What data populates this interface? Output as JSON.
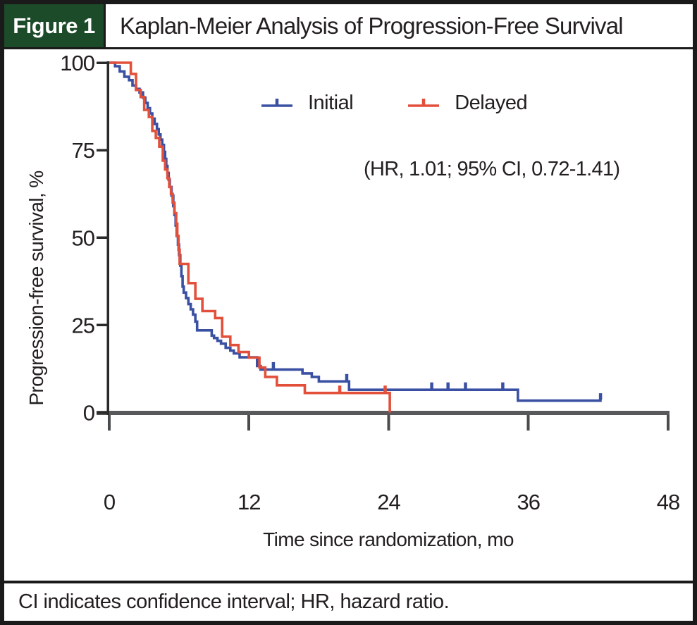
{
  "figure": {
    "label": "Figure 1",
    "title": "Kaplan-Meier Analysis of Progression-Free Survival",
    "footnote": "CI indicates confidence interval; HR, hazard ratio."
  },
  "colors": {
    "header_green": "#1c4b29",
    "initial_blue": "#3a50a3",
    "delayed_red": "#e2503b",
    "x_axis_gray": "#58595b",
    "x_tick_gray": "#4a4b4d",
    "y_axis_black": "#2a2a2a",
    "text_black": "#231f20"
  },
  "chart_data": {
    "type": "line",
    "subtype": "kaplan-meier-step",
    "title": "",
    "xlabel": "Time since randomization, mo",
    "ylabel": "Progression-free survival, %",
    "xlim": [
      0,
      48
    ],
    "ylim": [
      0,
      100
    ],
    "x_ticks": [
      0,
      12,
      24,
      36,
      48
    ],
    "y_ticks": [
      100,
      75,
      50,
      25,
      0
    ],
    "grid": false,
    "legend_position": "top-center",
    "annotation": "(HR, 1.01; 95% CI, 0.72-1.41)",
    "series": [
      {
        "name": "Initial",
        "color": "#3a50a3",
        "points": [
          [
            0,
            100
          ],
          [
            0.5,
            99
          ],
          [
            0.9,
            97.5
          ],
          [
            1.3,
            96
          ],
          [
            1.7,
            95
          ],
          [
            2,
            93.5
          ],
          [
            2.3,
            92.5
          ],
          [
            2.6,
            91.5
          ],
          [
            2.9,
            90
          ],
          [
            3.1,
            88.5
          ],
          [
            3.3,
            87
          ],
          [
            3.5,
            85.5
          ],
          [
            3.7,
            84
          ],
          [
            3.9,
            82.5
          ],
          [
            4.1,
            81
          ],
          [
            4.25,
            79.5
          ],
          [
            4.4,
            78
          ],
          [
            4.55,
            76.5
          ],
          [
            4.7,
            74.5
          ],
          [
            4.8,
            72.5
          ],
          [
            4.9,
            70.5
          ],
          [
            5,
            68.5
          ],
          [
            5.1,
            66.5
          ],
          [
            5.2,
            64.5
          ],
          [
            5.35,
            62
          ],
          [
            5.5,
            59
          ],
          [
            5.6,
            56.5
          ],
          [
            5.7,
            53.5
          ],
          [
            5.8,
            50.5
          ],
          [
            5.9,
            48
          ],
          [
            6,
            45
          ],
          [
            6.1,
            42
          ],
          [
            6.2,
            39
          ],
          [
            6.3,
            36
          ],
          [
            6.4,
            34.3
          ],
          [
            6.6,
            32.7
          ],
          [
            6.8,
            31
          ],
          [
            7,
            29.5
          ],
          [
            7.2,
            28
          ],
          [
            7.4,
            26
          ],
          [
            7.55,
            23.5
          ],
          [
            8.8,
            22
          ],
          [
            9,
            21.3
          ],
          [
            9.3,
            20.5
          ],
          [
            9.6,
            19.7
          ],
          [
            10,
            18.5
          ],
          [
            10.4,
            17.7
          ],
          [
            10.7,
            16.9
          ],
          [
            11.2,
            15.8
          ],
          [
            12.7,
            13.3
          ],
          [
            13,
            12.3
          ],
          [
            16.6,
            11.2
          ],
          [
            17.4,
            10.2
          ],
          [
            18,
            8.9
          ],
          [
            20.6,
            6.5
          ],
          [
            35.1,
            3.4
          ],
          [
            42.3,
            3.4
          ]
        ],
        "censors": [
          [
            14.1,
            12.3
          ],
          [
            20.4,
            8.9
          ],
          [
            27.7,
            6.5
          ],
          [
            29.1,
            6.5
          ],
          [
            30.6,
            6.5
          ],
          [
            33.8,
            6.5
          ],
          [
            42.2,
            3.4
          ]
        ]
      },
      {
        "name": "Delayed",
        "color": "#e2503b",
        "points": [
          [
            0,
            100
          ],
          [
            1.85,
            96.8
          ],
          [
            2.3,
            92.2
          ],
          [
            2.7,
            90.2
          ],
          [
            3,
            86.5
          ],
          [
            3.4,
            84.5
          ],
          [
            3.7,
            80.5
          ],
          [
            4,
            78.5
          ],
          [
            4.3,
            76
          ],
          [
            4.6,
            72
          ],
          [
            4.8,
            69.5
          ],
          [
            5,
            67
          ],
          [
            5.15,
            64.5
          ],
          [
            5.3,
            62.5
          ],
          [
            5.45,
            60
          ],
          [
            5.6,
            57
          ],
          [
            5.75,
            54
          ],
          [
            5.85,
            50.5
          ],
          [
            5.95,
            46.5
          ],
          [
            6.05,
            42.5
          ],
          [
            6.8,
            37
          ],
          [
            7.4,
            32.5
          ],
          [
            8,
            29
          ],
          [
            9.1,
            27
          ],
          [
            9.7,
            21.7
          ],
          [
            10.4,
            19.3
          ],
          [
            11.1,
            17.3
          ],
          [
            12,
            15.7
          ],
          [
            12.9,
            12.9
          ],
          [
            13.4,
            10.2
          ],
          [
            14.4,
            7.8
          ],
          [
            16.8,
            5.6
          ],
          [
            24.1,
            0
          ]
        ],
        "censors": [
          [
            19.8,
            5.6
          ],
          [
            23.7,
            5.6
          ]
        ]
      }
    ]
  }
}
